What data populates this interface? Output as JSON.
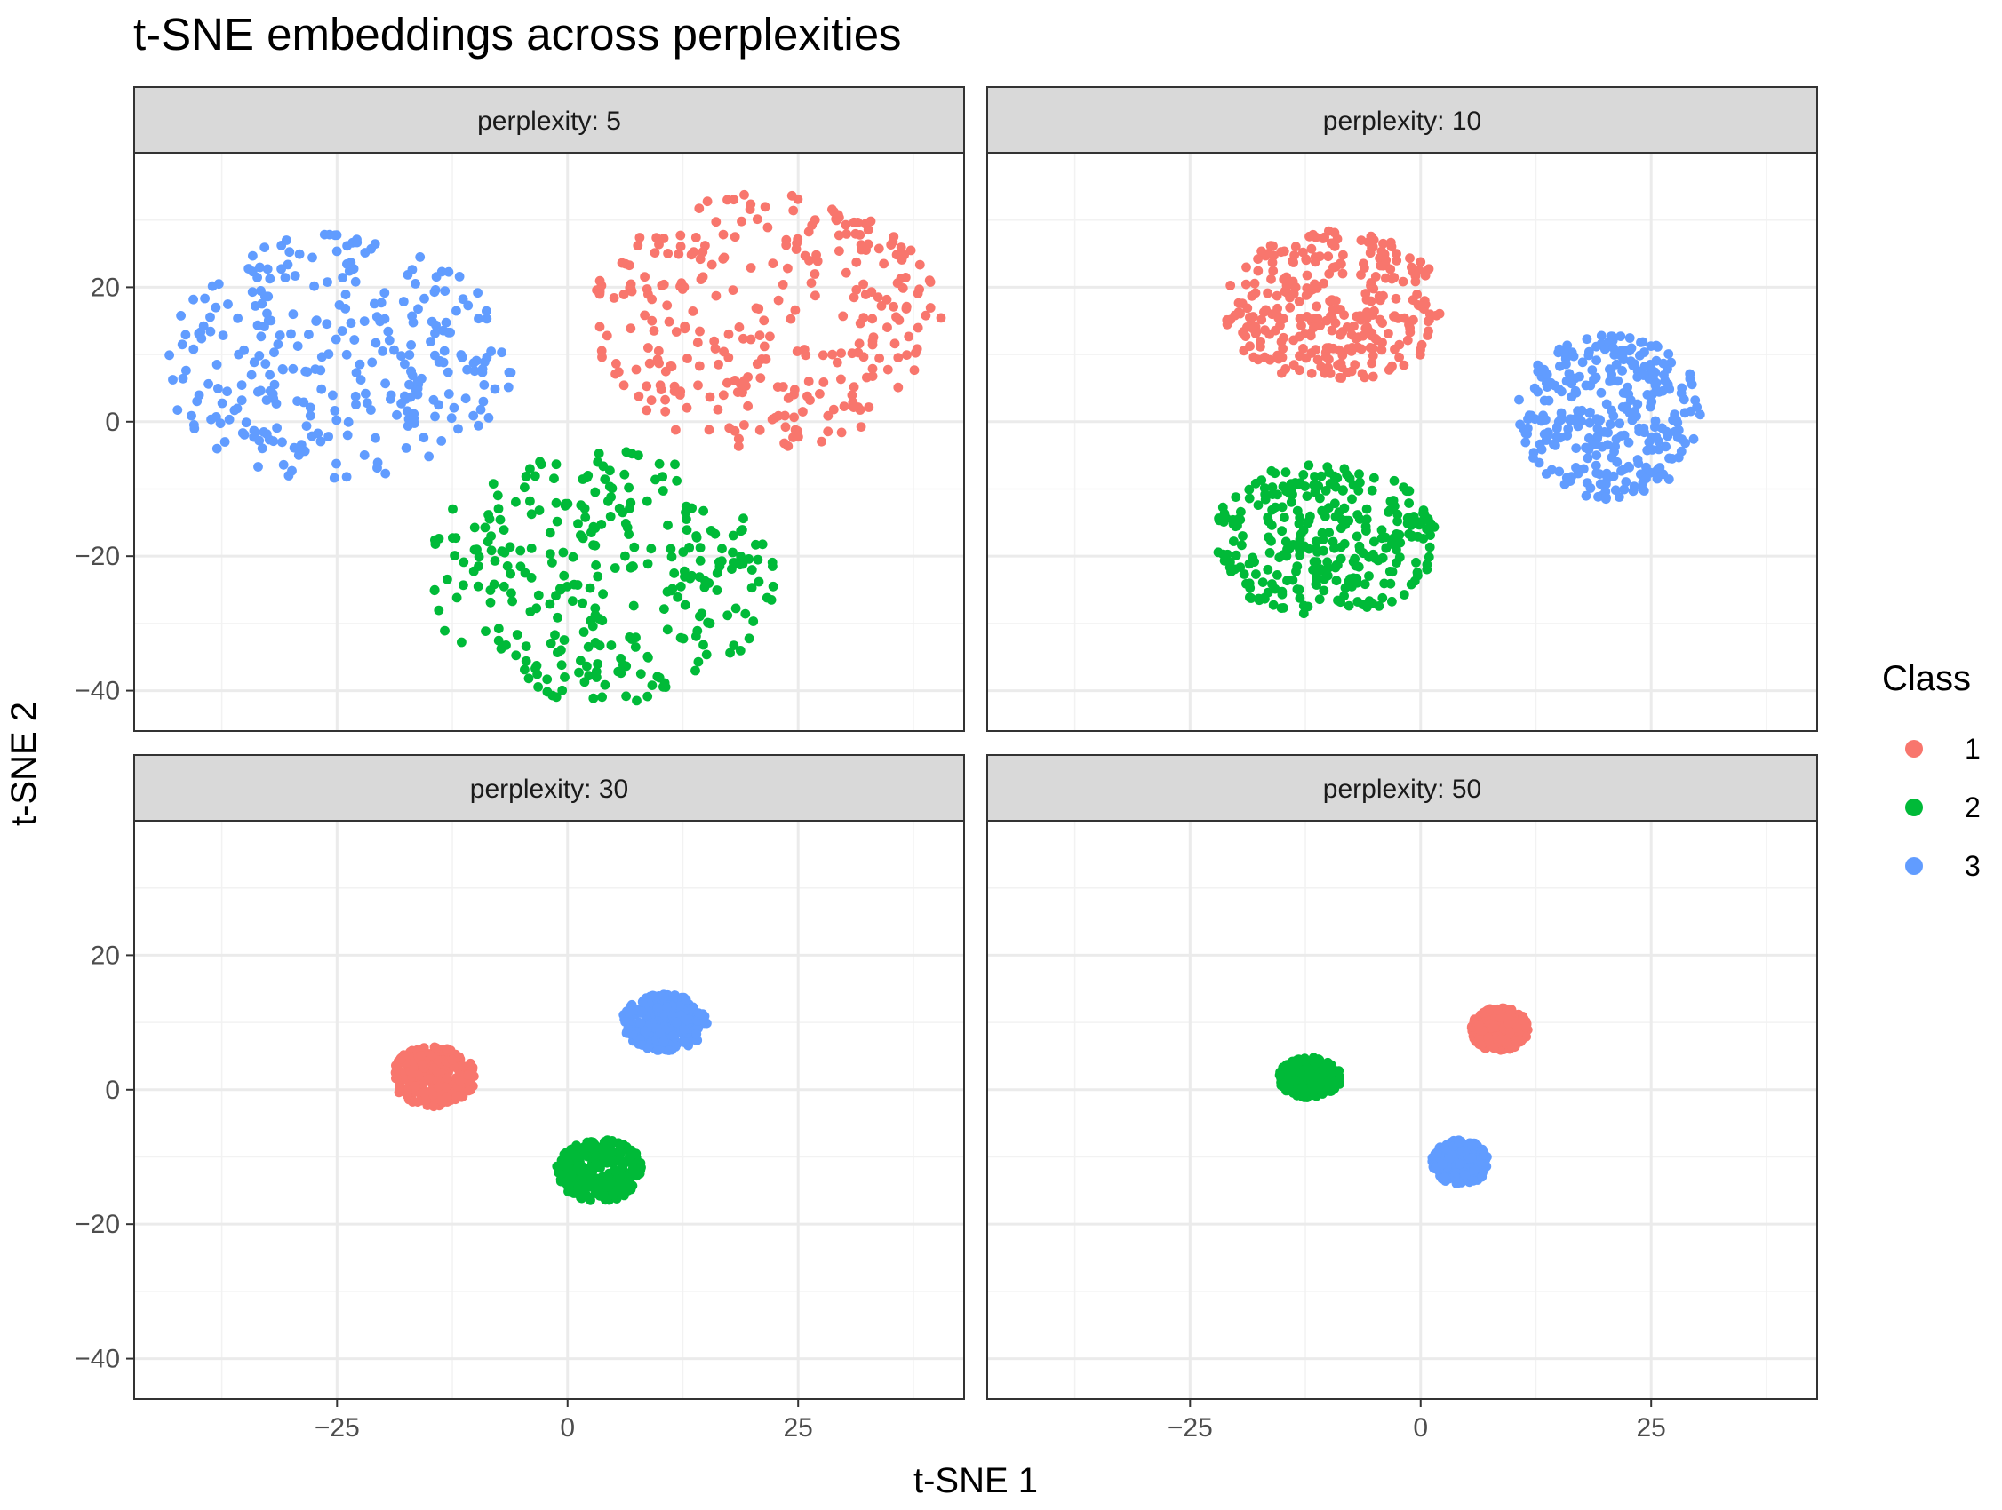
{
  "chart_data": {
    "type": "scatter",
    "title": "t-SNE embeddings across perplexities",
    "xlabel": "t-SNE 1",
    "ylabel": "t-SNE 2",
    "xlim": [
      -47,
      43
    ],
    "ylim": [
      -46,
      40
    ],
    "x_ticks": [
      -25,
      0,
      25
    ],
    "x_tick_labels": [
      "−25",
      "0",
      "25"
    ],
    "y_ticks": [
      -40,
      -20,
      0,
      20
    ],
    "y_tick_labels": [
      "−40",
      "−20",
      "0",
      "20"
    ],
    "grid": true,
    "legend": {
      "title": "Class",
      "position": "right",
      "entries": [
        {
          "label": "1",
          "color": "#F8766D"
        },
        {
          "label": "2",
          "color": "#00BA38"
        },
        {
          "label": "3",
          "color": "#619CFF"
        }
      ]
    },
    "points_per_class": 300,
    "panels": [
      {
        "label": "perplexity: 5",
        "clusters": [
          {
            "class": "1",
            "center_x": 21.5,
            "center_y": 15,
            "radius_x": 19,
            "radius_y": 19
          },
          {
            "class": "2",
            "center_x": 3.5,
            "center_y": -23,
            "radius_x": 19,
            "radius_y": 19
          },
          {
            "class": "3",
            "center_x": -25,
            "center_y": 9,
            "radius_x": 19,
            "radius_y": 19
          }
        ]
      },
      {
        "label": "perplexity: 10",
        "clusters": [
          {
            "class": "1",
            "center_x": -9.5,
            "center_y": 17,
            "radius_x": 12,
            "radius_y": 11.5
          },
          {
            "class": "2",
            "center_x": -10.5,
            "center_y": -17.5,
            "radius_x": 12.5,
            "radius_y": 11.5
          },
          {
            "class": "3",
            "center_x": 20.5,
            "center_y": 1,
            "radius_x": 10,
            "radius_y": 12.5
          }
        ]
      },
      {
        "label": "perplexity: 30",
        "clusters": [
          {
            "class": "1",
            "center_x": -14.5,
            "center_y": 2,
            "radius_x": 4.5,
            "radius_y": 4.6
          },
          {
            "class": "2",
            "center_x": 3.5,
            "center_y": -12,
            "radius_x": 4.7,
            "radius_y": 4.6
          },
          {
            "class": "3",
            "center_x": 10.5,
            "center_y": 10,
            "radius_x": 4.6,
            "radius_y": 4.2
          }
        ]
      },
      {
        "label": "perplexity: 50",
        "clusters": [
          {
            "class": "1",
            "center_x": 8.5,
            "center_y": 9,
            "radius_x": 3.2,
            "radius_y": 3.2
          },
          {
            "class": "2",
            "center_x": -12,
            "center_y": 1.8,
            "radius_x": 3.4,
            "radius_y": 3.0
          },
          {
            "class": "3",
            "center_x": 4.3,
            "center_y": -10.8,
            "radius_x": 3.1,
            "radius_y": 3.3
          }
        ]
      }
    ]
  }
}
